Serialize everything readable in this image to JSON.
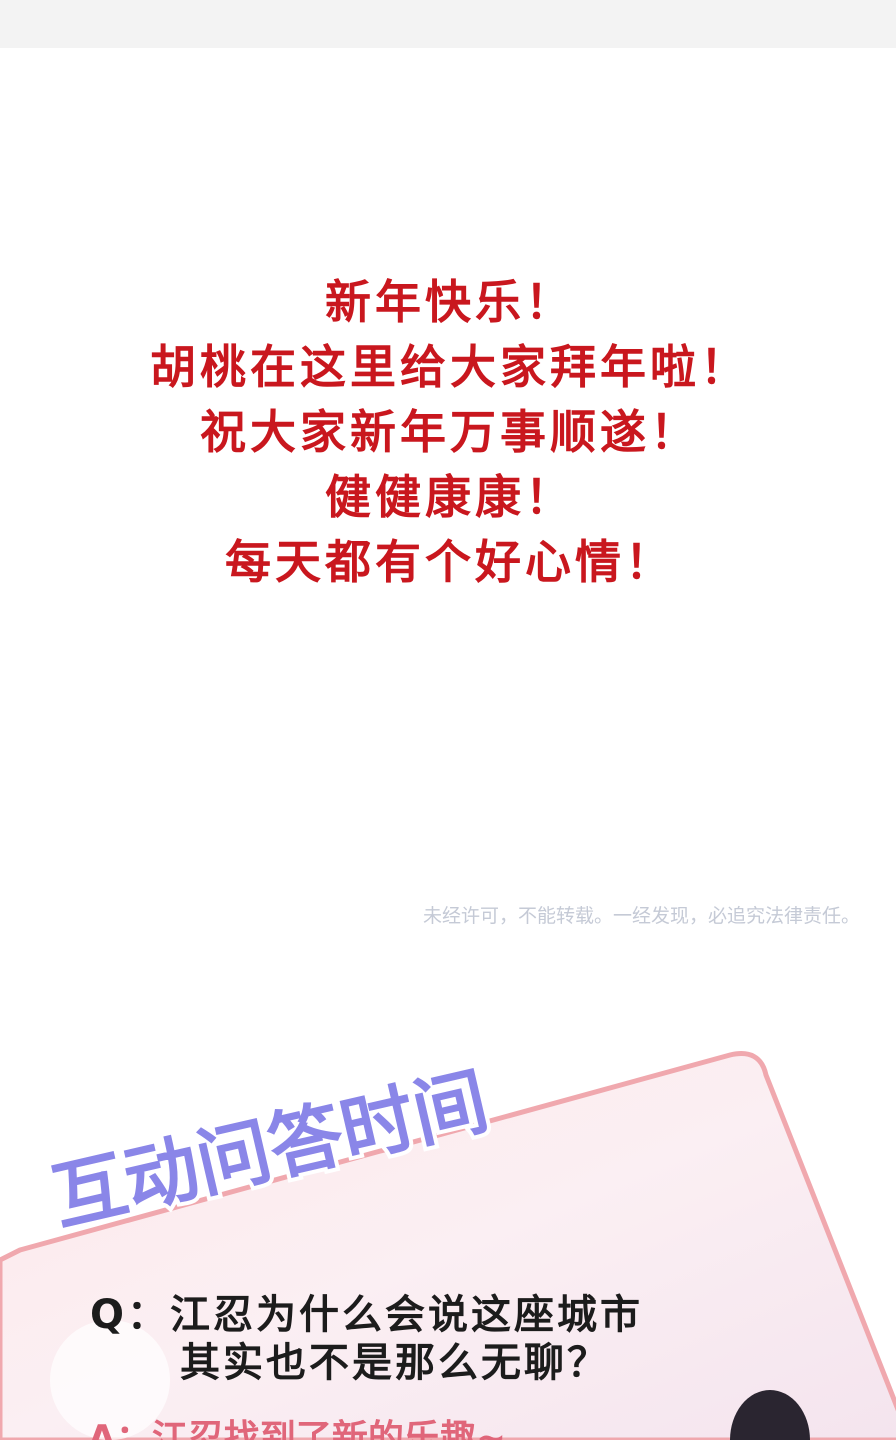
{
  "greeting": {
    "lines": [
      "新年快乐！",
      "胡桃在这里给大家拜年啦！",
      "祝大家新年万事顺遂！",
      "健健康康！",
      "每天都有个好心情！"
    ]
  },
  "watermark": "未经许可，不能转载。一经发现，必追究法律责任。",
  "qa": {
    "title": "互动问答时间",
    "question": [
      "Q：江忍为什么会说这座城市",
      "其实也不是那么无聊？"
    ],
    "answer": "A：江忍找到了新的乐趣~"
  }
}
